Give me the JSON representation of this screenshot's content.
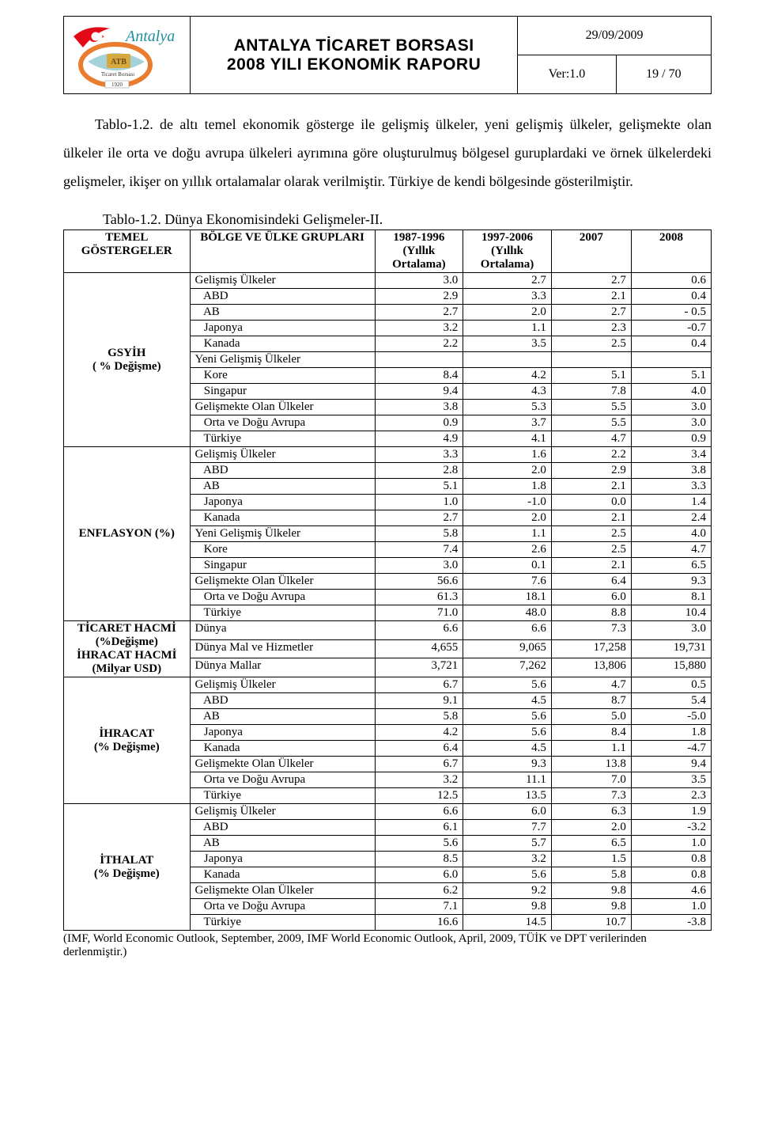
{
  "header": {
    "title_line1": "ANTALYA TİCARET BORSASI",
    "title_line2": "2008 YILI EKONOMİK RAPORU",
    "date": "29/09/2009",
    "ver": "Ver:1.0",
    "page": "19 / 70",
    "logo_text_top": "ATB",
    "logo_text_mid": "Ticaret Borsası",
    "logo_text_year": "1920",
    "logo_city": "Antalya"
  },
  "paragraph": "Tablo-1.2. de altı temel ekonomik gösterge ile gelişmiş ülkeler, yeni gelişmiş ülkeler, gelişmekte olan ülkeler ile orta ve doğu avrupa ülkeleri ayrımına göre oluşturulmuş bölgesel guruplardaki ve örnek ülkelerdeki gelişmeler, ikişer on yıllık ortalamalar olarak verilmiştir. Türkiye de kendi bölgesinde gösterilmiştir.",
  "table": {
    "caption": "Tablo-1.2. Dünya Ekonomisindeki Gelişmeler-II.",
    "headers": {
      "h1": "TEMEL GÖSTERGELER",
      "h2": "BÖLGE VE ÜLKE GRUPLARI",
      "h3": "1987-1996 (Yıllık Ortalama)",
      "h4": "1997-2006 (Yıllık Ortalama)",
      "h5": "2007",
      "h6": "2008"
    },
    "sections": [
      {
        "label": "GSYİH\n( % Değişme)",
        "rows": [
          {
            "name": "Gelişmiş Ülkeler",
            "indent": 0,
            "v": [
              "3.0",
              "2.7",
              "2.7",
              "0.6"
            ]
          },
          {
            "name": "ABD",
            "indent": 1,
            "v": [
              "2.9",
              "3.3",
              "2.1",
              "0.4"
            ]
          },
          {
            "name": "AB",
            "indent": 1,
            "v": [
              "2.7",
              "2.0",
              "2.7",
              "- 0.5"
            ]
          },
          {
            "name": "Japonya",
            "indent": 1,
            "v": [
              "3.2",
              "1.1",
              "2.3",
              "-0.7"
            ]
          },
          {
            "name": "Kanada",
            "indent": 1,
            "v": [
              "2.2",
              "3.5",
              "2.5",
              "0.4"
            ]
          },
          {
            "name": "Yeni Gelişmiş Ülkeler",
            "indent": 0,
            "v": [
              "",
              "",
              "",
              ""
            ]
          },
          {
            "name": "Kore",
            "indent": 1,
            "v": [
              "8.4",
              "4.2",
              "5.1",
              "5.1"
            ]
          },
          {
            "name": "Singapur",
            "indent": 1,
            "v": [
              "9.4",
              "4.3",
              "7.8",
              "4.0"
            ]
          },
          {
            "name": "Gelişmekte Olan Ülkeler",
            "indent": 0,
            "v": [
              "3.8",
              "5.3",
              "5.5",
              "3.0"
            ]
          },
          {
            "name": "Orta ve Doğu Avrupa",
            "indent": 1,
            "v": [
              "0.9",
              "3.7",
              "5.5",
              "3.0"
            ]
          },
          {
            "name": "Türkiye",
            "indent": 1,
            "v": [
              "4.9",
              "4.1",
              "4.7",
              "0.9"
            ]
          }
        ]
      },
      {
        "label": "ENFLASYON (%)",
        "rows": [
          {
            "name": "Gelişmiş Ülkeler",
            "indent": 0,
            "v": [
              "3.3",
              "1.6",
              "2.2",
              "3.4"
            ]
          },
          {
            "name": "ABD",
            "indent": 1,
            "v": [
              "2.8",
              "2.0",
              "2.9",
              "3.8"
            ]
          },
          {
            "name": "AB",
            "indent": 1,
            "v": [
              "5.1",
              "1.8",
              "2.1",
              "3.3"
            ]
          },
          {
            "name": "Japonya",
            "indent": 1,
            "v": [
              "1.0",
              "-1.0",
              "0.0",
              "1.4"
            ]
          },
          {
            "name": "Kanada",
            "indent": 1,
            "v": [
              "2.7",
              "2.0",
              "2.1",
              "2.4"
            ]
          },
          {
            "name": "Yeni Gelişmiş Ülkeler",
            "indent": 0,
            "v": [
              "5.8",
              "1.1",
              "2.5",
              "4.0"
            ]
          },
          {
            "name": "Kore",
            "indent": 1,
            "v": [
              "7.4",
              "2.6",
              "2.5",
              "4.7"
            ]
          },
          {
            "name": "Singapur",
            "indent": 1,
            "v": [
              "3.0",
              "0.1",
              "2.1",
              "6.5"
            ]
          },
          {
            "name": "Gelişmekte Olan Ülkeler",
            "indent": 0,
            "v": [
              "56.6",
              "7.6",
              "6.4",
              "9.3"
            ]
          },
          {
            "name": "Orta ve Doğu Avrupa",
            "indent": 1,
            "v": [
              "61.3",
              "18.1",
              "6.0",
              "8.1"
            ]
          },
          {
            "name": "Türkiye",
            "indent": 1,
            "v": [
              "71.0",
              "48.0",
              "8.8",
              "10.4"
            ]
          }
        ]
      },
      {
        "label": "TİCARET HACMİ\n(%Değişme)\nİHRACAT HACMİ\n(Milyar USD)",
        "rows": [
          {
            "name": "Dünya",
            "indent": 0,
            "v": [
              "6.6",
              "6.6",
              "7.3",
              "3.0"
            ]
          },
          {
            "name": "Dünya Mal ve Hizmetler",
            "indent": 0,
            "v": [
              "4,655",
              "9,065",
              "17,258",
              "19,731"
            ]
          },
          {
            "name": "Dünya Mallar",
            "indent": 0,
            "v": [
              "3,721",
              "7,262",
              "13,806",
              "15,880"
            ]
          }
        ]
      },
      {
        "label": "İHRACAT\n(% Değişme)",
        "rows": [
          {
            "name": "Gelişmiş Ülkeler",
            "indent": 0,
            "v": [
              "6.7",
              "5.6",
              "4.7",
              "0.5"
            ]
          },
          {
            "name": "ABD",
            "indent": 1,
            "v": [
              "9.1",
              "4.5",
              "8.7",
              "5.4"
            ]
          },
          {
            "name": "AB",
            "indent": 1,
            "v": [
              "5.8",
              "5.6",
              "5.0",
              "-5.0"
            ]
          },
          {
            "name": "Japonya",
            "indent": 1,
            "v": [
              "4.2",
              "5.6",
              "8.4",
              "1.8"
            ]
          },
          {
            "name": "Kanada",
            "indent": 1,
            "v": [
              "6.4",
              "4.5",
              "1.1",
              "-4.7"
            ]
          },
          {
            "name": "Gelişmekte Olan Ülkeler",
            "indent": 0,
            "v": [
              "6.7",
              "9.3",
              "13.8",
              "9.4"
            ]
          },
          {
            "name": "Orta ve Doğu Avrupa",
            "indent": 1,
            "v": [
              "3.2",
              "11.1",
              "7.0",
              "3.5"
            ]
          },
          {
            "name": "Türkiye",
            "indent": 1,
            "v": [
              "12.5",
              "13.5",
              "7.3",
              "2.3"
            ]
          }
        ]
      },
      {
        "label": "İTHALAT\n(% Değişme)",
        "rows": [
          {
            "name": "Gelişmiş Ülkeler",
            "indent": 0,
            "v": [
              "6.6",
              "6.0",
              "6.3",
              "1.9"
            ]
          },
          {
            "name": "ABD",
            "indent": 1,
            "v": [
              "6.1",
              "7.7",
              "2.0",
              "-3.2"
            ]
          },
          {
            "name": "AB",
            "indent": 1,
            "v": [
              "5.6",
              "5.7",
              "6.5",
              "1.0"
            ]
          },
          {
            "name": "Japonya",
            "indent": 1,
            "v": [
              "8.5",
              "3.2",
              "1.5",
              "0.8"
            ]
          },
          {
            "name": "Kanada",
            "indent": 1,
            "v": [
              "6.0",
              "5.6",
              "5.8",
              "0.8"
            ]
          },
          {
            "name": "Gelişmekte Olan Ülkeler",
            "indent": 0,
            "v": [
              "6.2",
              "9.2",
              "9.8",
              "4.6"
            ]
          },
          {
            "name": "Orta ve Doğu Avrupa",
            "indent": 1,
            "v": [
              "7.1",
              "9.8",
              "9.8",
              "1.0"
            ]
          },
          {
            "name": "Türkiye",
            "indent": 1,
            "v": [
              "16.6",
              "14.5",
              "10.7",
              "-3.8"
            ]
          }
        ]
      }
    ]
  },
  "footnote": "(IMF, World Economic Outlook, September, 2009, IMF World Economic Outlook, April, 2009, TÜİK ve DPT verilerinden derlenmiştir.)",
  "colors": {
    "flag_red": "#e30a17",
    "logo_orange": "#e97c2f",
    "logo_teal": "#1f8fa0",
    "logo_gold": "#d8a840",
    "text": "#000000",
    "bg": "#ffffff"
  }
}
